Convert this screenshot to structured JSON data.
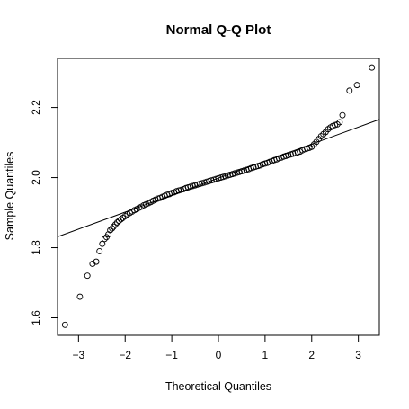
{
  "chart_data": {
    "type": "scatter",
    "title": "Normal Q-Q Plot",
    "xlabel": "Theoretical Quantiles",
    "ylabel": "Sample Quantiles",
    "xlim": [
      -3.45,
      3.45
    ],
    "ylim": [
      1.55,
      2.34
    ],
    "x_ticks": [
      -3,
      -2,
      -1,
      0,
      1,
      2,
      3
    ],
    "x_tick_labels": [
      "−3",
      "−2",
      "−1",
      "0",
      "1",
      "2",
      "3"
    ],
    "y_ticks": [
      1.6,
      1.8,
      2.0,
      2.2
    ],
    "y_tick_labels": [
      "1.6",
      "1.8",
      "2.0",
      "2.2"
    ],
    "grid": false,
    "reference_line": {
      "intercept": 1.9985,
      "slope": 0.0485
    },
    "points": {
      "x": [
        -3.29,
        -2.97,
        -2.81,
        -2.7,
        -2.62,
        -2.55,
        -2.49,
        -2.44,
        -2.4,
        -2.36,
        -2.32,
        -2.28,
        -2.25,
        -2.21,
        -2.17,
        -2.13,
        -2.09,
        -2.05,
        -2.0,
        -1.95,
        -1.9,
        -1.85,
        -1.8,
        -1.75,
        -1.7,
        -1.65,
        -1.6,
        -1.55,
        -1.5,
        -1.45,
        -1.4,
        -1.35,
        -1.3,
        -1.25,
        -1.2,
        -1.15,
        -1.1,
        -1.05,
        -1.0,
        -0.95,
        -0.9,
        -0.85,
        -0.8,
        -0.75,
        -0.7,
        -0.65,
        -0.6,
        -0.55,
        -0.5,
        -0.45,
        -0.4,
        -0.35,
        -0.3,
        -0.25,
        -0.2,
        -0.15,
        -0.1,
        -0.05,
        0.0,
        0.05,
        0.1,
        0.15,
        0.2,
        0.25,
        0.3,
        0.35,
        0.4,
        0.45,
        0.5,
        0.55,
        0.6,
        0.65,
        0.7,
        0.75,
        0.8,
        0.85,
        0.9,
        0.95,
        1.0,
        1.05,
        1.1,
        1.15,
        1.2,
        1.25,
        1.3,
        1.35,
        1.4,
        1.45,
        1.5,
        1.55,
        1.6,
        1.65,
        1.7,
        1.75,
        1.8,
        1.85,
        1.9,
        1.95,
        2.0,
        2.05,
        2.1,
        2.15,
        2.2,
        2.25,
        2.3,
        2.35,
        2.4,
        2.45,
        2.5,
        2.55,
        2.6,
        2.66,
        2.81,
        2.97,
        3.29
      ],
      "y": [
        1.58,
        1.66,
        1.72,
        1.754,
        1.76,
        1.79,
        1.811,
        1.825,
        1.83,
        1.838,
        1.85,
        1.855,
        1.86,
        1.866,
        1.872,
        1.877,
        1.881,
        1.885,
        1.89,
        1.895,
        1.899,
        1.903,
        1.907,
        1.91,
        1.914,
        1.917,
        1.921,
        1.924,
        1.927,
        1.93,
        1.934,
        1.937,
        1.94,
        1.942,
        1.945,
        1.948,
        1.951,
        1.953,
        1.956,
        1.958,
        1.961,
        1.963,
        1.965,
        1.967,
        1.97,
        1.972,
        1.974,
        1.976,
        1.978,
        1.98,
        1.982,
        1.984,
        1.986,
        1.988,
        1.99,
        1.992,
        1.994,
        1.996,
        1.998,
        2.0,
        2.002,
        2.004,
        2.006,
        2.008,
        2.01,
        2.012,
        2.014,
        2.016,
        2.018,
        2.02,
        2.022,
        2.024,
        2.027,
        2.029,
        2.031,
        2.033,
        2.035,
        2.038,
        2.04,
        2.042,
        2.045,
        2.047,
        2.05,
        2.052,
        2.055,
        2.057,
        2.06,
        2.062,
        2.064,
        2.066,
        2.068,
        2.07,
        2.072,
        2.074,
        2.078,
        2.081,
        2.083,
        2.085,
        2.088,
        2.095,
        2.102,
        2.11,
        2.118,
        2.124,
        2.13,
        2.138,
        2.143,
        2.147,
        2.15,
        2.152,
        2.158,
        2.178,
        2.248,
        2.264,
        2.314
      ]
    }
  }
}
